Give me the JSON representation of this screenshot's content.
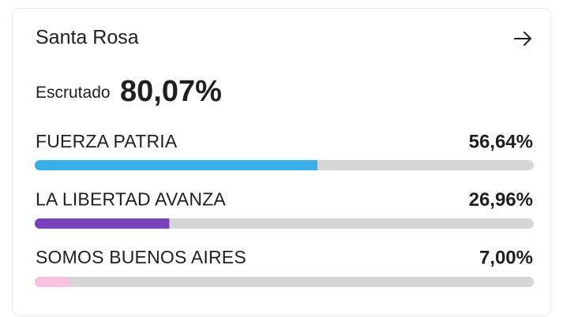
{
  "card": {
    "title": "Santa Rosa",
    "scrutiny_label": "Escrutado",
    "scrutiny": "80,07%",
    "xlim": [
      0,
      100
    ],
    "parties": [
      {
        "name": "FUERZA PATRIA",
        "value": 56.64,
        "value_label": "56,64%",
        "color": "#3aaee7"
      },
      {
        "name": "LA LIBERTAD AVANZA",
        "value": 26.96,
        "value_label": "26,96%",
        "color": "#7a3fbd"
      },
      {
        "name": "SOMOS BUENOS AIRES",
        "value": 7.0,
        "value_label": "7,00%",
        "color": "#f8c1df"
      }
    ]
  }
}
